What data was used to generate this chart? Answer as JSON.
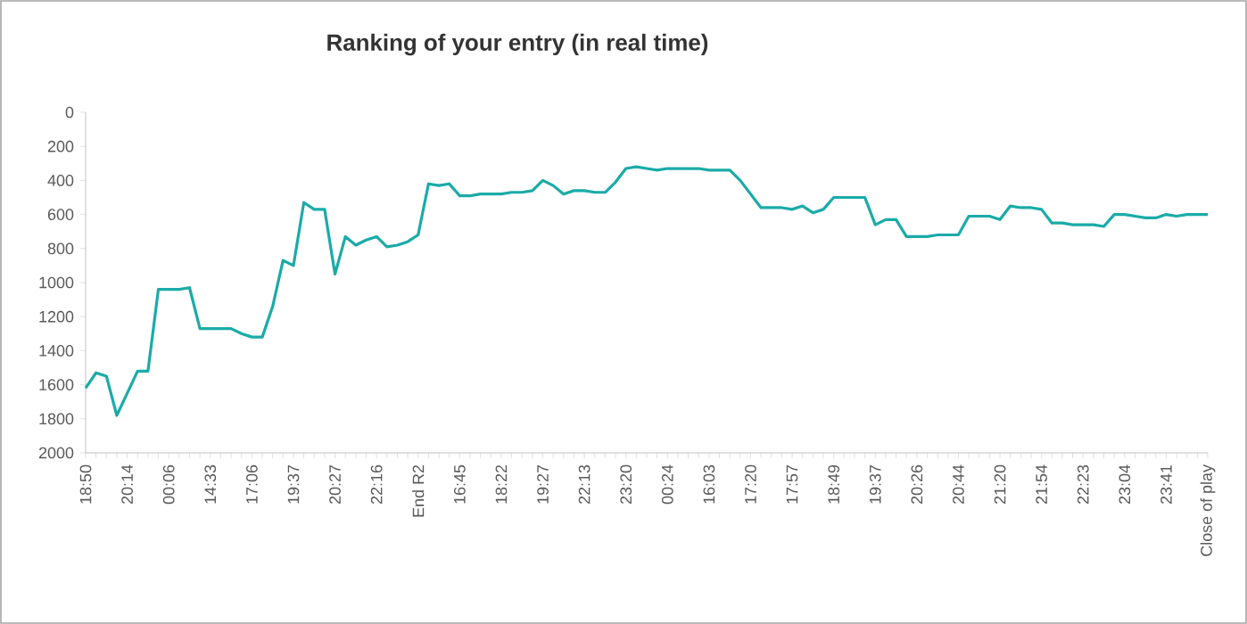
{
  "chart_data": {
    "type": "line",
    "title": "Ranking of your entry (in real time)",
    "categories": [
      "18:50",
      null,
      null,
      null,
      "20:14",
      null,
      null,
      null,
      "00:06",
      null,
      null,
      null,
      "14:33",
      null,
      null,
      null,
      "17:06",
      null,
      null,
      null,
      "19:37",
      null,
      null,
      null,
      "20:27",
      null,
      null,
      null,
      "22:16",
      null,
      null,
      null,
      "End R2",
      null,
      null,
      null,
      "16:45",
      null,
      null,
      null,
      "18:22",
      null,
      null,
      null,
      "19:27",
      null,
      null,
      null,
      "22:13",
      null,
      null,
      null,
      "23:20",
      null,
      null,
      null,
      "00:24",
      null,
      null,
      null,
      "16:03",
      null,
      null,
      null,
      "17:20",
      null,
      null,
      null,
      "17:57",
      null,
      null,
      null,
      "18:49",
      null,
      null,
      null,
      "19:37",
      null,
      null,
      null,
      "20:26",
      null,
      null,
      null,
      "20:44",
      null,
      null,
      null,
      "21:20",
      null,
      null,
      null,
      "21:54",
      null,
      null,
      null,
      "22:23",
      null,
      null,
      null,
      "23:04",
      null,
      null,
      null,
      "23:41",
      null,
      null,
      null,
      "Close of play"
    ],
    "values": [
      1620,
      1530,
      1550,
      1780,
      1650,
      1520,
      1520,
      1040,
      1040,
      1040,
      1030,
      1270,
      1270,
      1270,
      1270,
      1300,
      1320,
      1320,
      1140,
      870,
      900,
      530,
      570,
      570,
      950,
      730,
      780,
      750,
      730,
      790,
      780,
      760,
      720,
      420,
      430,
      420,
      490,
      490,
      480,
      480,
      480,
      470,
      470,
      460,
      400,
      430,
      480,
      460,
      460,
      470,
      470,
      410,
      330,
      320,
      330,
      340,
      330,
      330,
      330,
      330,
      340,
      340,
      340,
      400,
      480,
      560,
      560,
      560,
      570,
      550,
      590,
      570,
      500,
      500,
      500,
      500,
      660,
      630,
      630,
      730,
      730,
      730,
      720,
      720,
      720,
      610,
      610,
      610,
      630,
      550,
      560,
      560,
      570,
      650,
      650,
      660,
      660,
      660,
      670,
      600,
      600,
      610,
      620,
      620,
      600,
      610,
      600,
      600,
      600
    ],
    "color": "#1aaba8",
    "ylim": [
      2000,
      0
    ],
    "yticks": [
      0,
      200,
      400,
      600,
      800,
      1000,
      1200,
      1400,
      1600,
      1800,
      2000
    ],
    "marker": "none",
    "line_style": "solid",
    "grid": false
  }
}
